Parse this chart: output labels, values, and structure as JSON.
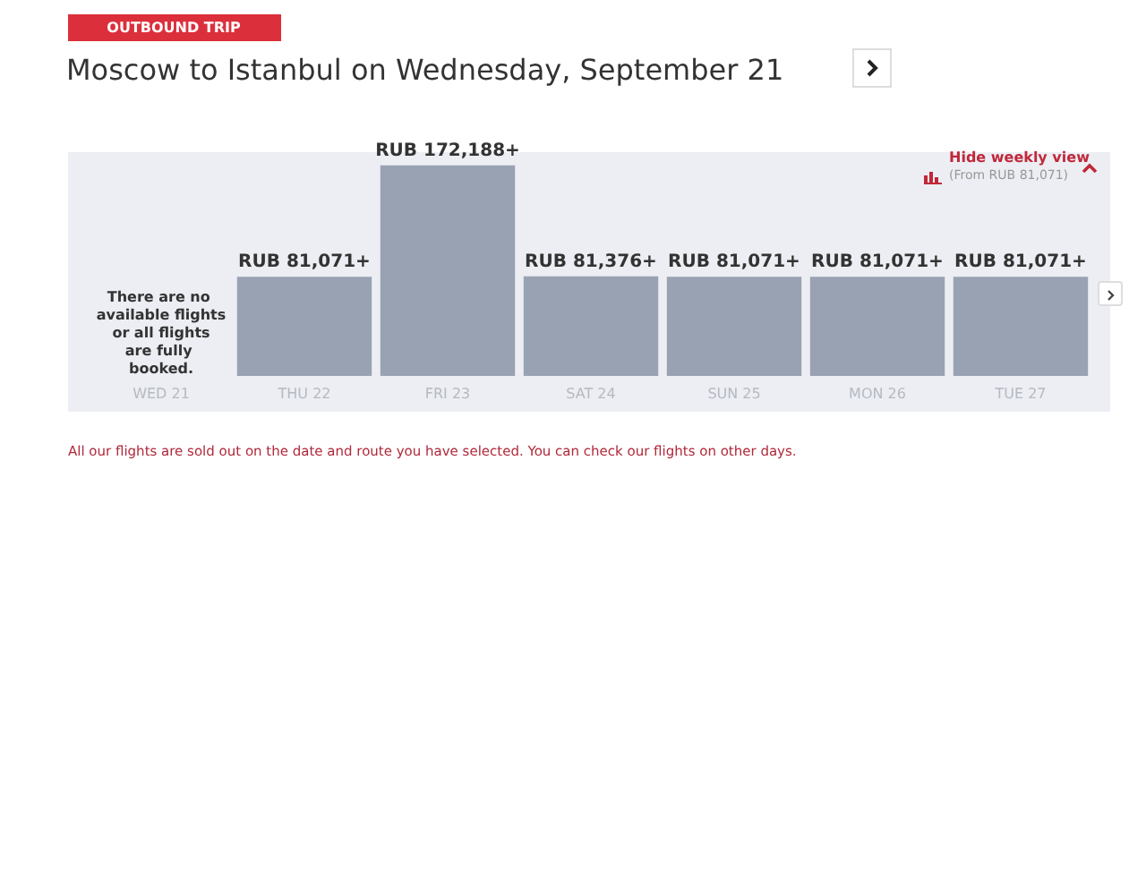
{
  "chart_data": {
    "type": "bar",
    "title": "Moscow to Istanbul on Wednesday, September 21",
    "subtitle": "OUTBOUND TRIP",
    "categories": [
      "WED 21",
      "THU 22",
      "FRI 23",
      "SAT 24",
      "SUN 25",
      "MON 26",
      "TUE 27"
    ],
    "values": [
      null,
      81071,
      172188,
      81376,
      81071,
      81071,
      81071
    ],
    "value_labels": [
      null,
      "RUB 81,071+",
      "RUB 172,188+",
      "RUB 81,376+",
      "RUB 81,071+",
      "RUB 81,071+",
      "RUB 81,071+"
    ],
    "color": "#98a2b3",
    "annotations": [
      "There are no available flights or all flights are fully booked.",
      "Hide weekly view",
      "(From RUB 81,071)",
      "All our flights are sold out on the date and route you have selected. You can check our flights on other days."
    ]
  }
}
